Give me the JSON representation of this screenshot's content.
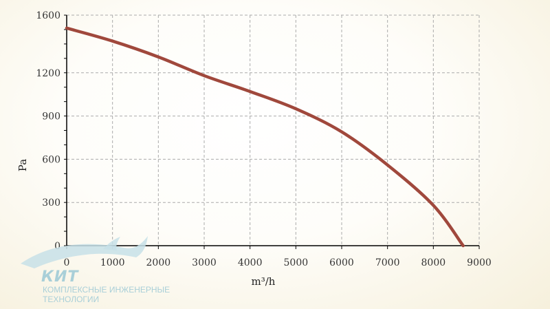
{
  "chart_data": {
    "type": "line",
    "title": "",
    "xlabel": "m³/h",
    "ylabel": "Pa",
    "xlim": [
      0,
      9000
    ],
    "ylim": [
      0,
      1600
    ],
    "x_ticks": [
      0,
      1000,
      2000,
      3000,
      4000,
      5000,
      6000,
      7000,
      8000,
      9000
    ],
    "y_ticks": [
      0,
      300,
      600,
      900,
      1200,
      1600
    ],
    "grid": true,
    "series": [
      {
        "color": "#a0483c",
        "x": [
          0,
          1000,
          2000,
          3000,
          4000,
          5000,
          6000,
          7000,
          8000,
          8650
        ],
        "y": [
          1510,
          1420,
          1310,
          1180,
          1070,
          950,
          790,
          560,
          280,
          0
        ]
      }
    ]
  },
  "logo": {
    "title": "КИТ",
    "subtitle_line1": "КОМПЛЕКСНЫЕ ИНЖЕНЕРНЫЕ",
    "subtitle_line2": "ТЕХНОЛОГИИ",
    "color": "#a9cfd8"
  }
}
